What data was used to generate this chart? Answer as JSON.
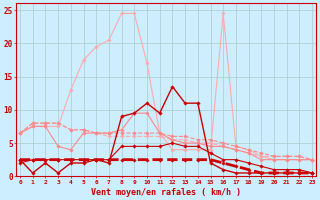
{
  "xlabel": "Vent moyen/en rafales ( km/h )",
  "x": [
    0,
    1,
    2,
    3,
    4,
    5,
    6,
    7,
    8,
    9,
    10,
    11,
    12,
    13,
    14,
    15,
    16,
    17,
    18,
    19,
    20,
    21,
    22,
    23
  ],
  "background_color": "#cceeff",
  "grid_color": "#aacccc",
  "lines": [
    {
      "y": [
        6.5,
        7.5,
        7.5,
        7.5,
        13.0,
        17.5,
        19.5,
        20.5,
        24.5,
        24.5,
        17.0,
        6.5,
        4.0,
        4.0,
        4.0,
        4.0,
        24.5,
        4.5,
        4.0,
        3.0,
        2.5,
        2.5,
        2.5,
        2.5
      ],
      "color": "#ffaaaa",
      "marker": "D",
      "markersize": 1.8,
      "linewidth": 0.8,
      "linestyle": "-",
      "zorder": 1
    },
    {
      "y": [
        6.5,
        8.0,
        8.0,
        8.0,
        7.0,
        7.0,
        6.5,
        6.0,
        6.0,
        6.0,
        6.0,
        6.0,
        5.5,
        5.5,
        5.0,
        5.0,
        4.5,
        4.0,
        3.5,
        3.0,
        3.0,
        3.0,
        3.0,
        2.5
      ],
      "color": "#ffaaaa",
      "marker": "D",
      "markersize": 1.8,
      "linewidth": 0.8,
      "linestyle": "--",
      "zorder": 2
    },
    {
      "y": [
        6.5,
        7.5,
        7.5,
        4.5,
        4.0,
        6.5,
        6.5,
        6.5,
        7.0,
        9.5,
        9.5,
        6.5,
        5.5,
        5.0,
        5.0,
        4.5,
        4.5,
        4.0,
        3.5,
        2.5,
        2.5,
        2.5,
        2.5,
        2.5
      ],
      "color": "#ff8888",
      "marker": "D",
      "markersize": 1.8,
      "linewidth": 0.8,
      "linestyle": "-",
      "zorder": 3
    },
    {
      "y": [
        6.5,
        8.0,
        8.0,
        8.0,
        7.0,
        7.0,
        6.5,
        6.5,
        6.5,
        6.5,
        6.5,
        6.5,
        6.0,
        6.0,
        5.5,
        5.5,
        5.0,
        4.5,
        4.0,
        3.5,
        3.0,
        3.0,
        3.0,
        2.5
      ],
      "color": "#ff8888",
      "marker": "D",
      "markersize": 1.8,
      "linewidth": 0.8,
      "linestyle": "--",
      "zorder": 4
    },
    {
      "y": [
        2.0,
        2.5,
        2.5,
        2.5,
        2.5,
        2.5,
        2.5,
        2.5,
        4.5,
        4.5,
        4.5,
        4.5,
        5.0,
        4.5,
        4.5,
        3.5,
        2.5,
        2.5,
        2.0,
        1.5,
        1.0,
        1.0,
        1.0,
        0.5
      ],
      "color": "#cc0000",
      "marker": "D",
      "markersize": 1.8,
      "linewidth": 0.8,
      "linestyle": "-",
      "zorder": 5
    },
    {
      "y": [
        2.5,
        0.5,
        2.0,
        0.5,
        2.0,
        2.0,
        2.5,
        2.0,
        9.0,
        9.5,
        11.0,
        9.5,
        13.5,
        11.0,
        11.0,
        2.0,
        1.0,
        0.5,
        0.5,
        0.5,
        0.5,
        0.5,
        0.5,
        0.5
      ],
      "color": "#cc0000",
      "marker": "D",
      "markersize": 1.8,
      "linewidth": 1.0,
      "linestyle": "-",
      "zorder": 6
    },
    {
      "y": [
        2.5,
        2.5,
        2.5,
        2.5,
        2.5,
        2.5,
        2.5,
        2.5,
        2.5,
        2.5,
        2.5,
        2.5,
        2.5,
        2.5,
        2.5,
        2.5,
        2.0,
        1.5,
        1.0,
        0.5,
        0.5,
        0.5,
        0.5,
        0.5
      ],
      "color": "#cc0000",
      "marker": "D",
      "markersize": 1.8,
      "linewidth": 2.0,
      "linestyle": "--",
      "zorder": 7
    }
  ],
  "ylim": [
    0,
    26
  ],
  "xlim": [
    -0.3,
    23.3
  ],
  "yticks": [
    0,
    5,
    10,
    15,
    20,
    25
  ],
  "xticks": [
    0,
    1,
    2,
    3,
    4,
    5,
    6,
    7,
    8,
    9,
    10,
    11,
    12,
    13,
    14,
    15,
    16,
    17,
    18,
    19,
    20,
    21,
    22,
    23
  ]
}
